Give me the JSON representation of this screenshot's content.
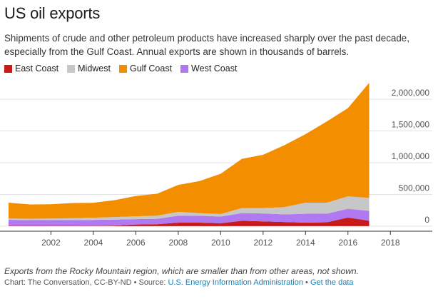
{
  "title": "US oil exports",
  "subtitle": "Shipments of crude and other petroleum products have increased sharply over the past decade, especially from the Gulf Coast. Annual exports are shown in thousands of barrels.",
  "note": "Exports from the Rocky Mountain region, which are smaller than from other areas, not shown.",
  "source": {
    "prefix": "Chart: The Conversation, CC-BY-ND • Source: ",
    "link_label": "U.S. Energy Information Administration",
    "separator": " • ",
    "data_link_label": "Get the data"
  },
  "colors": {
    "east_coast": "#c81a1a",
    "midwest": "#c7c7c7",
    "gulf_coast": "#f28e00",
    "west_coast": "#b079f2",
    "grid": "#e3e3e3",
    "link": "#1a7fb5"
  },
  "chart_data": {
    "type": "area",
    "stacked": true,
    "x": [
      2000,
      2001,
      2002,
      2003,
      2004,
      2005,
      2006,
      2007,
      2008,
      2009,
      2010,
      2011,
      2012,
      2013,
      2014,
      2015,
      2016,
      2017
    ],
    "xlim": [
      1999.8,
      2019
    ],
    "ylim": [
      -80000,
      2350000
    ],
    "x_ticks": [
      2002,
      2004,
      2006,
      2008,
      2010,
      2012,
      2014,
      2016,
      2018
    ],
    "y_ticks": [
      0,
      500000,
      1000000,
      1500000,
      2000000
    ],
    "y_tick_labels": [
      "0",
      "500,000",
      "1,000,000",
      "1,500,000",
      "2,000,000"
    ],
    "legend_position": "top-left",
    "grid": true,
    "series": [
      {
        "name": "East Coast",
        "key": "east_coast",
        "values": [
          5000,
          5000,
          5000,
          5000,
          6000,
          8000,
          25000,
          30000,
          55000,
          55000,
          45000,
          85000,
          75000,
          65000,
          55000,
          60000,
          135000,
          85000
        ]
      },
      {
        "name": "West Coast",
        "key": "west_coast",
        "values": [
          95000,
          90000,
          90000,
          90000,
          92000,
          95000,
          85000,
          85000,
          110000,
          110000,
          105000,
          120000,
          125000,
          120000,
          140000,
          135000,
          140000,
          155000
        ]
      },
      {
        "name": "Midwest",
        "key": "midwest",
        "values": [
          20000,
          22000,
          25000,
          30000,
          35000,
          40000,
          45000,
          50000,
          60000,
          40000,
          40000,
          80000,
          85000,
          115000,
          175000,
          175000,
          195000,
          205000
        ]
      },
      {
        "name": "Gulf Coast",
        "key": "gulf_coast",
        "values": [
          250000,
          225000,
          225000,
          240000,
          235000,
          267000,
          320000,
          345000,
          425000,
          505000,
          635000,
          775000,
          840000,
          975000,
          1080000,
          1280000,
          1390000,
          1815000
        ]
      }
    ]
  }
}
